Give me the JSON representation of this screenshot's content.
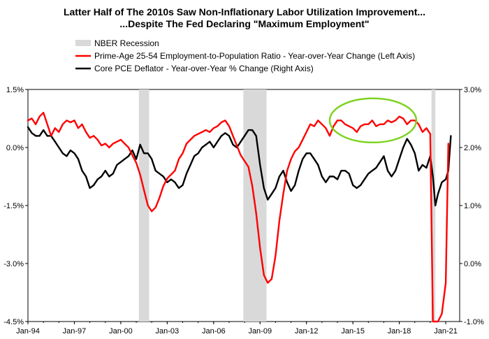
{
  "chart_data": {
    "type": "line",
    "title_line1": "Latter Half of The 2010s Saw Non-Inflationary Labor Utilization Improvement...",
    "title_line2": "...Despite The Fed Declaring \"Maximum Employment\"",
    "left_axis": {
      "ylim": [
        -4.5,
        1.5
      ],
      "ticks": [
        1.5,
        0.0,
        -1.5,
        -3.0,
        -4.5
      ],
      "tick_labels": [
        "1.5%",
        "0.0%",
        "-1.5%",
        "-3.0%",
        "-4.5%"
      ]
    },
    "right_axis": {
      "ylim": [
        -1.0,
        3.0
      ],
      "ticks": [
        3.0,
        2.0,
        1.0,
        0.0,
        -1.0
      ],
      "tick_labels": [
        "3.0%",
        "2.0%",
        "1.0%",
        "0.0%",
        "-1.0%"
      ]
    },
    "x_axis": {
      "xlim": [
        1994.0,
        2021.9
      ],
      "ticks": [
        1994,
        1997,
        2000,
        2003,
        2006,
        2009,
        2012,
        2015,
        2018,
        2021
      ],
      "tick_labels": [
        "Jan-94",
        "Jan-97",
        "Jan-00",
        "Jan-03",
        "Jan-06",
        "Jan-09",
        "Jan-12",
        "Jan-15",
        "Jan-18",
        "Jan-21"
      ]
    },
    "recessions": [
      {
        "start": 2001.17,
        "end": 2001.83
      },
      {
        "start": 2007.92,
        "end": 2009.42
      },
      {
        "start": 2020.08,
        "end": 2020.33
      }
    ],
    "legend": [
      {
        "name": "NBER Recession",
        "color": "#d9d9d9",
        "kind": "box"
      },
      {
        "name": "Prime-Age 25-54 Employment-to-Population Ratio - Year-over-Year Change (Left Axis)",
        "color": "#ff0000",
        "kind": "line"
      },
      {
        "name": "Core PCE Deflator - Year-over-Year % Change (Right Axis)",
        "color": "#000000",
        "kind": "line"
      }
    ],
    "annotation": {
      "type": "ellipse",
      "color": "#7ed321",
      "center_x": 2016.3,
      "center_y": 0.7,
      "radius_x": 2.8,
      "radius_y": 0.57
    },
    "series": [
      {
        "name": "Prime-Age 25-54 Employment-to-Population Ratio - Year-over-Year Change (Left Axis)",
        "axis": "left",
        "color": "#ff0000",
        "x": [
          1994.0,
          1994.25,
          1994.5,
          1994.75,
          1995.0,
          1995.25,
          1995.5,
          1995.75,
          1996.0,
          1996.25,
          1996.5,
          1996.75,
          1997.0,
          1997.25,
          1997.5,
          1997.75,
          1998.0,
          1998.25,
          1998.5,
          1998.75,
          1999.0,
          1999.25,
          1999.5,
          1999.75,
          2000.0,
          2000.25,
          2000.5,
          2000.75,
          2001.0,
          2001.25,
          2001.5,
          2001.75,
          2002.0,
          2002.25,
          2002.5,
          2002.75,
          2003.0,
          2003.25,
          2003.5,
          2003.75,
          2004.0,
          2004.25,
          2004.5,
          2004.75,
          2005.0,
          2005.25,
          2005.5,
          2005.75,
          2006.0,
          2006.25,
          2006.5,
          2006.75,
          2007.0,
          2007.25,
          2007.5,
          2007.75,
          2008.0,
          2008.25,
          2008.5,
          2008.75,
          2009.0,
          2009.25,
          2009.5,
          2009.75,
          2010.0,
          2010.25,
          2010.5,
          2010.75,
          2011.0,
          2011.25,
          2011.5,
          2011.75,
          2012.0,
          2012.25,
          2012.5,
          2012.75,
          2013.0,
          2013.25,
          2013.5,
          2013.75,
          2014.0,
          2014.25,
          2014.5,
          2014.75,
          2015.0,
          2015.25,
          2015.5,
          2015.75,
          2016.0,
          2016.25,
          2016.5,
          2016.75,
          2017.0,
          2017.25,
          2017.5,
          2017.75,
          2018.0,
          2018.25,
          2018.5,
          2018.75,
          2019.0,
          2019.25,
          2019.5,
          2019.75,
          2020.0,
          2020.17,
          2020.25,
          2020.5,
          2020.75,
          2021.0,
          2021.17
        ],
        "values": [
          0.7,
          0.75,
          0.6,
          0.8,
          0.9,
          0.6,
          0.3,
          0.5,
          0.4,
          0.6,
          0.7,
          0.65,
          0.7,
          0.5,
          0.6,
          0.4,
          0.25,
          0.3,
          0.2,
          0.05,
          0.1,
          0.0,
          0.1,
          0.15,
          0.2,
          0.1,
          0.0,
          -0.2,
          -0.4,
          -0.7,
          -1.1,
          -1.5,
          -1.65,
          -1.55,
          -1.3,
          -1.0,
          -0.8,
          -0.7,
          -0.6,
          -0.3,
          -0.15,
          0.1,
          0.2,
          0.3,
          0.35,
          0.4,
          0.45,
          0.4,
          0.5,
          0.55,
          0.65,
          0.7,
          0.55,
          0.3,
          0.05,
          -0.2,
          -0.35,
          -0.5,
          -1.0,
          -1.7,
          -2.6,
          -3.3,
          -3.5,
          -3.4,
          -2.8,
          -1.9,
          -1.2,
          -0.6,
          -0.3,
          -0.1,
          0.0,
          0.2,
          0.4,
          0.6,
          0.55,
          0.7,
          0.6,
          0.5,
          0.3,
          0.55,
          0.7,
          0.7,
          0.6,
          0.55,
          0.5,
          0.4,
          0.55,
          0.6,
          0.6,
          0.7,
          0.55,
          0.6,
          0.6,
          0.7,
          0.65,
          0.7,
          0.8,
          0.75,
          0.6,
          0.7,
          0.7,
          0.6,
          0.4,
          0.5,
          0.35,
          -4.5,
          -4.5,
          -4.5,
          -4.3,
          -3.5,
          0.1
        ]
      },
      {
        "name": "Core PCE Deflator - Year-over-Year % Change (Right Axis)",
        "axis": "right",
        "color": "#000000",
        "x": [
          1994.0,
          1994.25,
          1994.5,
          1994.75,
          1995.0,
          1995.25,
          1995.5,
          1995.75,
          1996.0,
          1996.25,
          1996.5,
          1996.75,
          1997.0,
          1997.25,
          1997.5,
          1997.75,
          1998.0,
          1998.25,
          1998.5,
          1998.75,
          1999.0,
          1999.25,
          1999.5,
          1999.75,
          2000.0,
          2000.25,
          2000.5,
          2000.75,
          2001.0,
          2001.25,
          2001.5,
          2001.75,
          2002.0,
          2002.25,
          2002.5,
          2002.75,
          2003.0,
          2003.25,
          2003.5,
          2003.75,
          2004.0,
          2004.25,
          2004.5,
          2004.75,
          2005.0,
          2005.25,
          2005.5,
          2005.75,
          2006.0,
          2006.25,
          2006.5,
          2006.75,
          2007.0,
          2007.25,
          2007.5,
          2007.75,
          2008.0,
          2008.25,
          2008.5,
          2008.75,
          2009.0,
          2009.25,
          2009.5,
          2009.75,
          2010.0,
          2010.25,
          2010.5,
          2010.75,
          2011.0,
          2011.25,
          2011.5,
          2011.75,
          2012.0,
          2012.25,
          2012.5,
          2012.75,
          2013.0,
          2013.25,
          2013.5,
          2013.75,
          2014.0,
          2014.25,
          2014.5,
          2014.75,
          2015.0,
          2015.25,
          2015.5,
          2015.75,
          2016.0,
          2016.25,
          2016.5,
          2016.75,
          2017.0,
          2017.25,
          2017.5,
          2017.75,
          2018.0,
          2018.25,
          2018.5,
          2018.75,
          2019.0,
          2019.25,
          2019.5,
          2019.75,
          2020.0,
          2020.17,
          2020.33,
          2020.5,
          2020.75,
          2021.0,
          2021.17,
          2021.33
        ],
        "values": [
          2.35,
          2.25,
          2.2,
          2.2,
          2.3,
          2.2,
          2.2,
          2.1,
          2.0,
          1.9,
          1.85,
          1.95,
          1.9,
          1.8,
          1.6,
          1.5,
          1.3,
          1.35,
          1.45,
          1.5,
          1.6,
          1.5,
          1.55,
          1.7,
          1.75,
          1.8,
          1.85,
          1.95,
          1.8,
          2.05,
          1.9,
          1.9,
          1.8,
          1.6,
          1.55,
          1.5,
          1.4,
          1.45,
          1.4,
          1.3,
          1.35,
          1.55,
          1.7,
          1.85,
          1.9,
          2.0,
          2.05,
          2.1,
          2.0,
          2.1,
          2.2,
          2.25,
          2.2,
          2.05,
          2.0,
          2.1,
          2.2,
          2.3,
          2.3,
          2.2,
          1.7,
          1.3,
          1.1,
          1.2,
          1.3,
          1.5,
          1.6,
          1.4,
          1.25,
          1.35,
          1.6,
          1.8,
          1.9,
          1.9,
          1.8,
          1.7,
          1.5,
          1.4,
          1.5,
          1.5,
          1.45,
          1.6,
          1.6,
          1.55,
          1.35,
          1.3,
          1.35,
          1.45,
          1.55,
          1.6,
          1.65,
          1.75,
          1.85,
          1.6,
          1.5,
          1.6,
          1.8,
          2.0,
          2.15,
          2.05,
          1.9,
          1.6,
          1.7,
          1.65,
          1.85,
          1.5,
          1.0,
          1.2,
          1.4,
          1.45,
          1.6,
          2.2
        ]
      }
    ]
  }
}
